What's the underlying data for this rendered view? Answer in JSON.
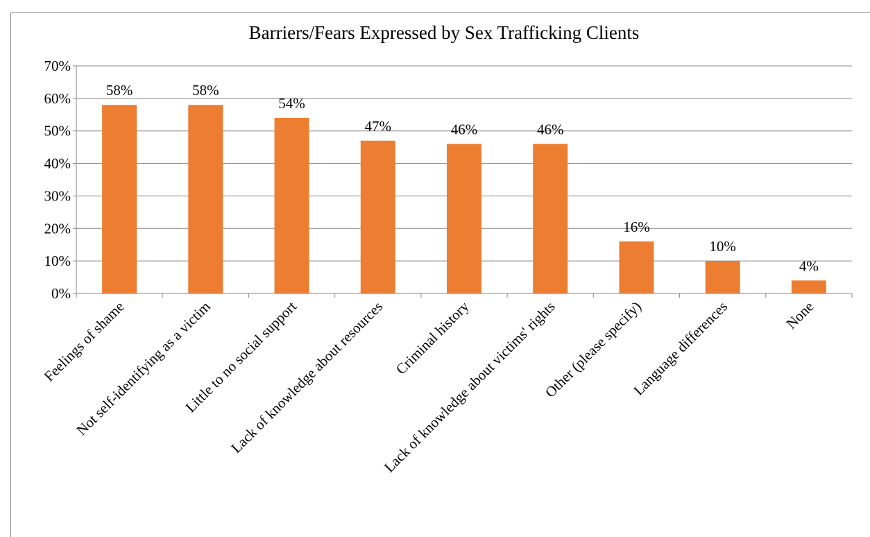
{
  "chart_data": {
    "type": "bar",
    "title": "Barriers/Fears Expressed by Sex Trafficking Clients",
    "categories": [
      "Feelings of shame",
      "Not self-identifying as a victim",
      "Little to no social support",
      "Lack of knowledge about resources",
      "Criminal history",
      "Lack of knowledge about victims' rights",
      "Other (please specify)",
      "Language differences",
      "None"
    ],
    "values": [
      58,
      58,
      54,
      47,
      46,
      46,
      16,
      10,
      4
    ],
    "value_labels": [
      "58%",
      "58%",
      "54%",
      "47%",
      "46%",
      "46%",
      "16%",
      "10%",
      "4%"
    ],
    "color": "#ed7d31",
    "ylim": [
      0,
      70
    ],
    "yticks": [
      {
        "value": 0,
        "label": "0%"
      },
      {
        "value": 10,
        "label": "10%"
      },
      {
        "value": 20,
        "label": "20%"
      },
      {
        "value": 30,
        "label": "30%"
      },
      {
        "value": 40,
        "label": "40%"
      },
      {
        "value": 50,
        "label": "50%"
      },
      {
        "value": 60,
        "label": "60%"
      },
      {
        "value": 70,
        "label": "70%"
      }
    ],
    "grid": true
  }
}
